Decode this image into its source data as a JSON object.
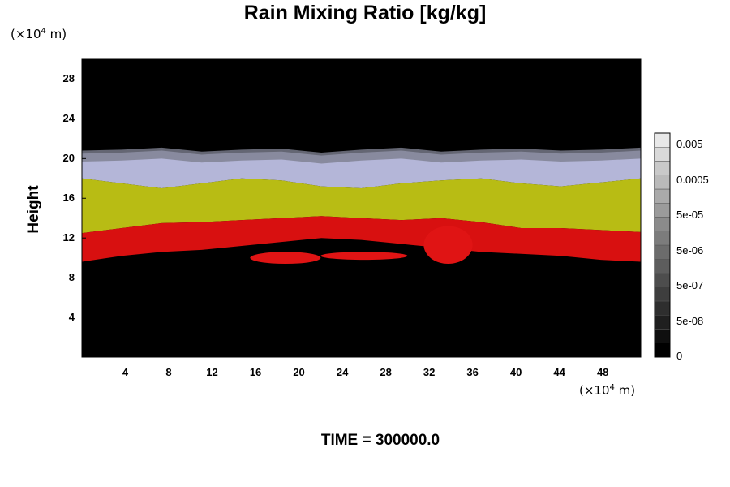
{
  "chart_data": {
    "type": "heatmap",
    "title": "Rain Mixing Ratio [kg/kg]",
    "ylabel": "Height",
    "xlabel": "",
    "y_unit": "(×10",
    "x_unit": "(×10",
    "unit_exp": "4",
    "unit_tail": " m)",
    "footer": "TIME = 300000.0",
    "xlim": [
      0,
      51.5
    ],
    "ylim": [
      0,
      30
    ],
    "x_ticks": [
      "4",
      "8",
      "12",
      "16",
      "20",
      "24",
      "28",
      "32",
      "36",
      "40",
      "44",
      "48"
    ],
    "x_tick_values": [
      4,
      8,
      12,
      16,
      20,
      24,
      28,
      32,
      36,
      40,
      44,
      48
    ],
    "y_ticks": [
      "4",
      "8",
      "12",
      "16",
      "20",
      "24",
      "28"
    ],
    "y_tick_values": [
      4,
      8,
      12,
      16,
      20,
      24,
      28
    ],
    "bands": [
      {
        "name": "upper",
        "color": "#b4b6d8",
        "bottom": [
          18,
          17.5,
          17,
          17.5,
          18,
          17.8,
          17.2,
          17,
          17.5,
          17.8,
          18,
          17.5,
          17.2,
          17.6,
          18
        ],
        "top": [
          20.5,
          20.6,
          20.8,
          20.4,
          20.6,
          20.7,
          20.3,
          20.6,
          20.8,
          20.4,
          20.6,
          20.7,
          20.5,
          20.6,
          20.8
        ]
      },
      {
        "name": "middle",
        "color": "#b8bc14",
        "bottom": [
          12.5,
          13,
          13.5,
          13.6,
          13.8,
          14,
          14.2,
          14,
          13.8,
          14,
          13.6,
          13,
          13,
          12.8,
          12.6
        ],
        "top": [
          18,
          17.5,
          17,
          17.5,
          18,
          17.8,
          17.2,
          17,
          17.5,
          17.8,
          18,
          17.5,
          17.2,
          17.6,
          18
        ]
      },
      {
        "name": "lower",
        "color": "#d81010",
        "bottom": [
          9.6,
          10.2,
          10.6,
          10.8,
          11.2,
          11.6,
          12,
          11.8,
          11.4,
          11,
          10.6,
          10.4,
          10.2,
          9.8,
          9.6
        ],
        "top": [
          12.5,
          13,
          13.5,
          13.6,
          13.8,
          14,
          14.2,
          14,
          13.8,
          14,
          13.6,
          13,
          13,
          12.8,
          12.6
        ]
      }
    ],
    "rain_patches": [
      {
        "x": [
          15.5,
          22
        ],
        "y": [
          9.4,
          10.6
        ]
      },
      {
        "x": [
          22,
          30
        ],
        "y": [
          9.8,
          10.6
        ]
      },
      {
        "x": [
          31.5,
          36
        ],
        "y": [
          9.4,
          13.2
        ]
      }
    ],
    "colorbar": {
      "labels": [
        "0.005",
        "0.0005",
        "5e-05",
        "5e-06",
        "5e-07",
        "5e-08",
        "0"
      ],
      "levels": 16
    }
  }
}
